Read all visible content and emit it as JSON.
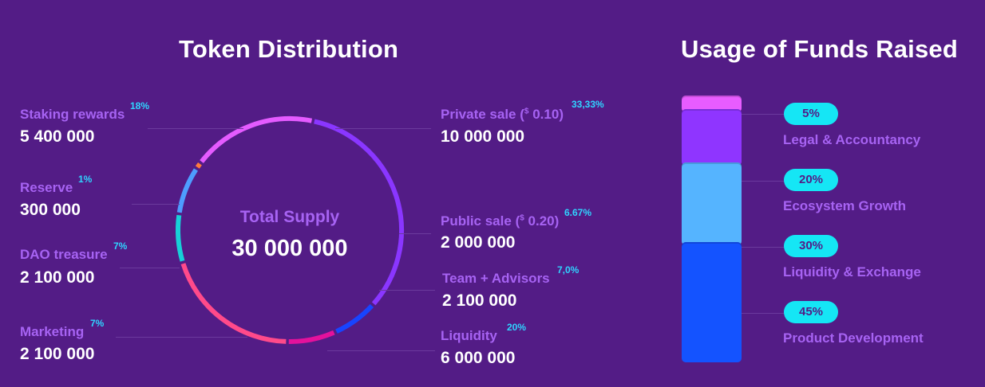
{
  "token_distribution": {
    "title": "Token Distribution",
    "center_label": "Total Supply",
    "center_value": "30 000 000",
    "colors": [
      "#8a36ff",
      "#1844ff",
      "#e4119c",
      "#ff4a8a",
      "#17d0d8",
      "#4e9dff",
      "#ff7a3d",
      "#e45bff"
    ]
  },
  "usage_of_funds": {
    "title": "Usage of Funds Raised"
  },
  "chart_data": [
    {
      "type": "pie",
      "title": "Token Distribution",
      "center_label": "Total Supply",
      "center_value": "30 000 000",
      "slices": [
        {
          "label": "Private sale",
          "price_symbol": "$",
          "price_value": "0.10",
          "percent": "33,33%",
          "amount_text": "10 000 000",
          "amount": 10000000
        },
        {
          "label": "Public sale",
          "price_symbol": "$",
          "price_value": "0.20",
          "percent": "6.67%",
          "amount_text": "2 000 000",
          "amount": 2000000
        },
        {
          "label": "Team + Advisors",
          "percent": "7,0%",
          "amount_text": "2 100 000",
          "amount": 2100000
        },
        {
          "label": "Liquidity",
          "percent": "20%",
          "amount_text": "6 000 000",
          "amount": 6000000
        },
        {
          "label": "Marketing",
          "percent": "7%",
          "amount_text": "2 100 000",
          "amount": 2100000
        },
        {
          "label": "DAO treasure",
          "percent": "7%",
          "amount_text": "2 100 000",
          "amount": 2100000
        },
        {
          "label": "Reserve",
          "percent": "1%",
          "amount_text": "300 000",
          "amount": 300000
        },
        {
          "label": "Staking rewards",
          "percent": "18%",
          "amount_text": "5 400 000",
          "amount": 5400000
        }
      ]
    },
    {
      "type": "bar",
      "stacked": true,
      "title": "Usage of Funds Raised",
      "categories": [
        "Legal & Accountancy",
        "Ecosystem Growth",
        "Liquidity & Exchange",
        "Product Development"
      ],
      "values": [
        5,
        20,
        30,
        45
      ],
      "labels": [
        "5%",
        "20%",
        "30%",
        "45%"
      ],
      "colors": [
        "#e85cff",
        "#8f35ff",
        "#55b4ff",
        "#1453ff"
      ]
    }
  ]
}
